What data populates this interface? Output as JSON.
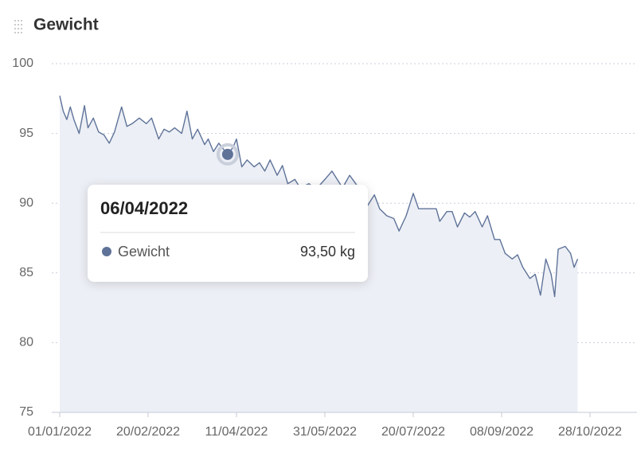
{
  "chart_data": {
    "type": "line",
    "title": "Gewicht",
    "x": [
      "01/01/2022",
      "03/01/2022",
      "05/01/2022",
      "07/01/2022",
      "09/01/2022",
      "12/01/2022",
      "15/01/2022",
      "17/01/2022",
      "20/01/2022",
      "23/01/2022",
      "26/01/2022",
      "29/01/2022",
      "01/02/2022",
      "05/02/2022",
      "08/02/2022",
      "11/02/2022",
      "15/02/2022",
      "19/02/2022",
      "22/02/2022",
      "26/02/2022",
      "01/03/2022",
      "04/03/2022",
      "07/03/2022",
      "11/03/2022",
      "14/03/2022",
      "17/03/2022",
      "20/03/2022",
      "24/03/2022",
      "26/03/2022",
      "29/03/2022",
      "01/04/2022",
      "06/04/2022",
      "09/04/2022",
      "11/04/2022",
      "14/04/2022",
      "17/04/2022",
      "21/04/2022",
      "24/04/2022",
      "27/04/2022",
      "30/04/2022",
      "04/05/2022",
      "07/05/2022",
      "10/05/2022",
      "14/05/2022",
      "17/05/2022",
      "22/05/2022",
      "26/05/2022",
      "31/05/2022",
      "04/06/2022",
      "07/06/2022",
      "10/06/2022",
      "14/06/2022",
      "18/06/2022",
      "21/06/2022",
      "24/06/2022",
      "28/06/2022",
      "01/07/2022",
      "05/07/2022",
      "09/07/2022",
      "12/07/2022",
      "16/07/2022",
      "20/07/2022",
      "23/07/2022",
      "27/07/2022",
      "02/08/2022",
      "04/08/2022",
      "08/08/2022",
      "11/08/2022",
      "14/08/2022",
      "18/08/2022",
      "21/08/2022",
      "24/08/2022",
      "28/08/2022",
      "31/08/2022",
      "04/09/2022",
      "07/09/2022",
      "10/09/2022",
      "14/09/2022",
      "17/09/2022",
      "20/09/2022",
      "24/09/2022",
      "27/09/2022",
      "30/09/2022",
      "03/10/2022",
      "06/10/2022",
      "08/10/2022",
      "10/10/2022",
      "14/10/2022",
      "17/10/2022",
      "19/10/2022",
      "21/10/2022"
    ],
    "series": [
      {
        "name": "Gewicht",
        "color": "#5f7399",
        "values": [
          97.7,
          96.6,
          96.0,
          96.9,
          96.0,
          95.0,
          97.0,
          95.4,
          96.1,
          95.1,
          94.9,
          94.3,
          95.1,
          96.9,
          95.5,
          95.7,
          96.1,
          95.7,
          96.1,
          94.6,
          95.3,
          95.1,
          95.4,
          95.0,
          96.6,
          94.6,
          95.3,
          94.2,
          94.6,
          93.7,
          94.3,
          93.5,
          94.0,
          94.6,
          92.6,
          93.1,
          92.6,
          92.9,
          92.3,
          93.1,
          92.0,
          92.7,
          91.4,
          91.7,
          91.1,
          91.4,
          91.0,
          91.7,
          92.3,
          91.7,
          91.1,
          92.0,
          91.3,
          90.9,
          89.8,
          90.6,
          89.6,
          89.1,
          88.9,
          88.0,
          89.1,
          90.7,
          89.6,
          89.6,
          89.6,
          88.7,
          89.4,
          89.4,
          88.3,
          89.3,
          89.0,
          89.4,
          88.3,
          89.1,
          87.4,
          87.4,
          86.4,
          86.0,
          86.3,
          85.4,
          84.6,
          84.9,
          83.4,
          86.0,
          84.9,
          83.3,
          86.7,
          86.9,
          86.4,
          85.4,
          86.0
        ]
      }
    ],
    "xlim": [
      "01/01/2022",
      "28/10/2022"
    ],
    "xticks": [
      "01/01/2022",
      "20/02/2022",
      "11/04/2022",
      "31/05/2022",
      "20/07/2022",
      "08/09/2022",
      "28/10/2022"
    ],
    "ylim": [
      75,
      100
    ],
    "yticks": [
      75,
      80,
      85,
      90,
      95,
      100
    ],
    "grid": true,
    "tooltip": {
      "date": "06/04/2022",
      "value": 93.5,
      "value_label": "93,50 kg"
    }
  }
}
